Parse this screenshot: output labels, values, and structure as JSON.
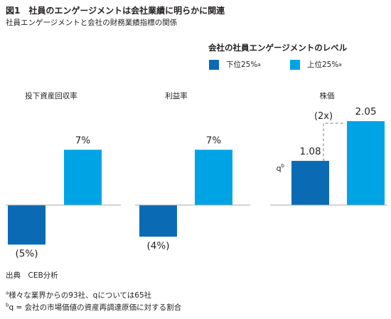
{
  "title": "図1　社員のエンゲージメントは会社業績に明らかに関連",
  "subtitle": "社員エンゲージメントと会社の財務業績指標の関係",
  "legend": {
    "title": "会社の社員エンゲージメントのレベル",
    "items": [
      {
        "label": "下位25%",
        "sup": "a",
        "color": "#0a6bb4"
      },
      {
        "label": "上位25%",
        "sup": "a",
        "color": "#00a4e4"
      }
    ]
  },
  "colors": {
    "low": "#0a6bb4",
    "high": "#00a4e4",
    "axis": "#a7a9ac",
    "dash": "#a7a9ac"
  },
  "chart_data": [
    {
      "type": "bar",
      "title": "投下資産回収率",
      "categories": [
        "下位25%",
        "上位25%"
      ],
      "values": [
        -5,
        7
      ],
      "data_labels": [
        "(5%)",
        "7%"
      ]
    },
    {
      "type": "bar",
      "title": "利益率",
      "categories": [
        "下位25%",
        "上位25%"
      ],
      "values": [
        -4,
        7
      ],
      "data_labels": [
        "(4%)",
        "7%"
      ]
    },
    {
      "type": "bar",
      "title": "株価",
      "categories": [
        "下位25%",
        "上位25%"
      ],
      "values": [
        1.08,
        2.05
      ],
      "data_labels": [
        "1.08",
        "2.05"
      ],
      "axis_label": "q",
      "axis_label_sup": "b",
      "annotation": "(2x)"
    }
  ],
  "source": "出典　CEB分析",
  "notes": [
    {
      "sup": "a",
      "text": "様々な業界からの93社、qについては65社"
    },
    {
      "sup": "b",
      "text": "q = 会社の市場価値の資産再調達原価に対する割合"
    }
  ]
}
